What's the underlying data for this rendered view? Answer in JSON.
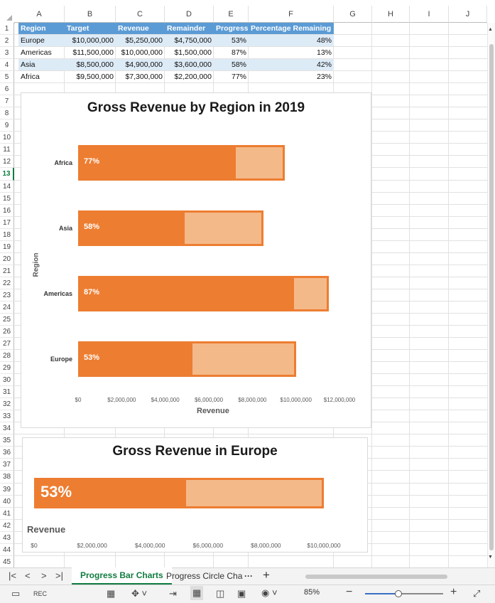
{
  "columns": [
    "A",
    "B",
    "C",
    "D",
    "E",
    "F",
    "G",
    "H",
    "I",
    "J"
  ],
  "rows": [
    "1",
    "2",
    "3",
    "4",
    "5",
    "6",
    "7",
    "8",
    "9",
    "10",
    "11",
    "12",
    "13",
    "14",
    "15",
    "16",
    "17",
    "18",
    "19",
    "20",
    "21",
    "22",
    "23",
    "24",
    "25",
    "26",
    "27",
    "28",
    "29",
    "30",
    "31",
    "32",
    "33",
    "34",
    "35",
    "36",
    "37",
    "38",
    "39",
    "40",
    "41",
    "42",
    "43",
    "44",
    "45"
  ],
  "table": {
    "headers": [
      "Region",
      "Target",
      "Revenue",
      "Remainder",
      "Progress",
      "Percentage Remaining"
    ],
    "rows": [
      [
        "Europe",
        "$10,000,000",
        "$5,250,000",
        "$4,750,000",
        "53%",
        "48%"
      ],
      [
        "Americas",
        "$11,500,000",
        "$10,000,000",
        "$1,500,000",
        "87%",
        "13%"
      ],
      [
        "Asia",
        "$8,500,000",
        "$4,900,000",
        "$3,600,000",
        "58%",
        "42%"
      ],
      [
        "Africa",
        "$9,500,000",
        "$7,300,000",
        "$2,200,000",
        "77%",
        "23%"
      ]
    ]
  },
  "chart_data": [
    {
      "type": "bar",
      "title": "Gross Revenue by Region in 2019",
      "xlabel": "Revenue",
      "ylabel": "Region",
      "categories": [
        "Africa",
        "Asia",
        "Americas",
        "Europe"
      ],
      "series": [
        {
          "name": "Target",
          "values": [
            9500000,
            8500000,
            11500000,
            10000000
          ]
        },
        {
          "name": "Revenue",
          "values": [
            7300000,
            4900000,
            10000000,
            5250000
          ]
        }
      ],
      "data_labels": [
        "77%",
        "58%",
        "87%",
        "53%"
      ],
      "xlim": [
        0,
        12000000
      ],
      "ticks": [
        "$0",
        "$2,000,000",
        "$4,000,000",
        "$6,000,000",
        "$8,000,000",
        "$10,000,000",
        "$12,000,000"
      ]
    },
    {
      "type": "bar",
      "title": "Gross Revenue in Europe",
      "xlabel": "Revenue",
      "categories": [
        "Europe"
      ],
      "series": [
        {
          "name": "Target",
          "values": [
            10000000
          ]
        },
        {
          "name": "Revenue",
          "values": [
            5250000
          ]
        }
      ],
      "data_labels": [
        "53%"
      ],
      "xlim": [
        0,
        10000000
      ],
      "ticks": [
        "$0",
        "$2,000,000",
        "$4,000,000",
        "$6,000,000",
        "$8,000,000",
        "$10,000,000"
      ]
    }
  ],
  "tabs": {
    "active": "Progress Bar Charts",
    "other": "Progress Circle Cha",
    "more": "···",
    "add": "+"
  },
  "status": {
    "zoom": "85%",
    "zoom_level": 0.85
  },
  "colors": {
    "accent_fill": "#ed7d31",
    "light_fill": "#f4b989",
    "header_blue": "#5b9bd5",
    "band_blue": "#ddebf7",
    "active_tab": "#107c41"
  },
  "icons": [
    "first-sheet-icon",
    "prev-sheet-icon",
    "next-sheet-icon",
    "last-sheet-icon",
    "add-sheet-icon",
    "accessibility-icon",
    "macro-record-icon",
    "normal-view-icon",
    "page-layout-icon",
    "page-break-icon",
    "display-settings-icon",
    "zoom-out-icon",
    "zoom-in-icon",
    "fit-screen-icon"
  ]
}
